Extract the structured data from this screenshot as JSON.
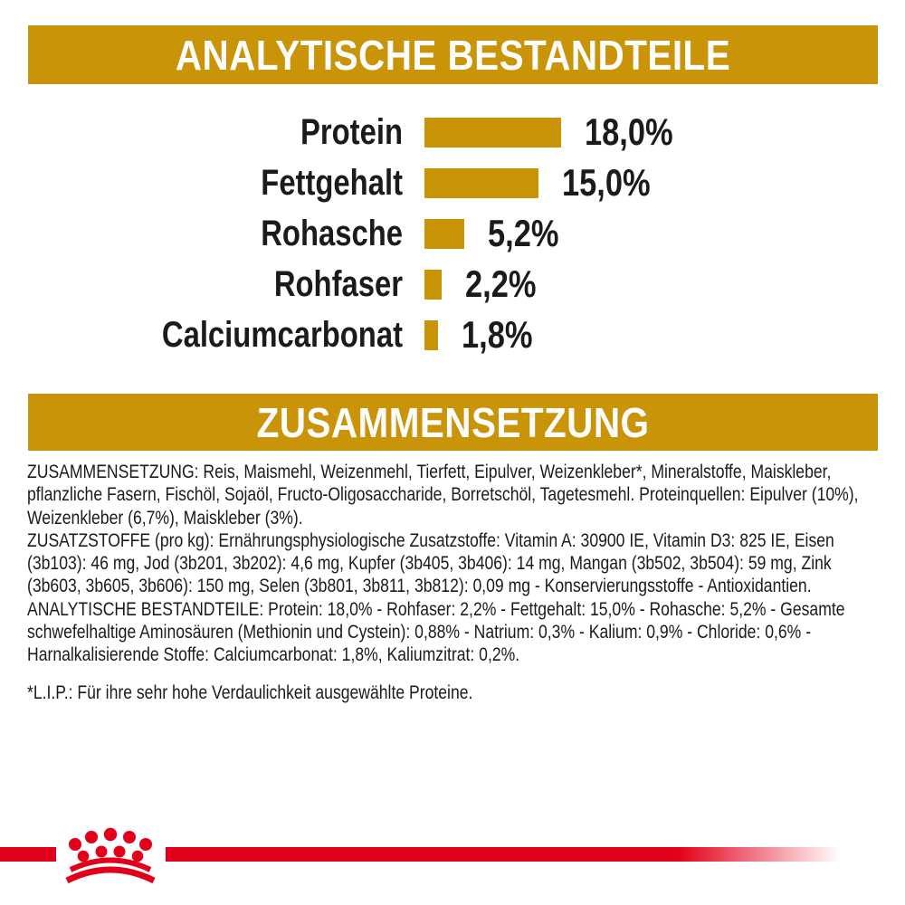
{
  "colors": {
    "gold": "#c99407",
    "red": "#e2001a",
    "text": "#1b1b1b"
  },
  "banners": {
    "analytical": "ANALYTISCHE BESTANDTEILE",
    "composition": "ZUSAMMENSETZUNG"
  },
  "chart_data": {
    "type": "bar",
    "orientation": "horizontal",
    "categories": [
      "Protein",
      "Fettgehalt",
      "Rohasche",
      "Rohfaser",
      "Calciumcarbonat"
    ],
    "values": [
      18.0,
      15.0,
      5.2,
      2.2,
      1.8
    ],
    "value_labels": [
      "18,0%",
      "15,0%",
      "5,2%",
      "2,2%",
      "1,8%"
    ],
    "unit": "%",
    "xlim": [
      0,
      18
    ],
    "bar_color": "#c99407",
    "grid": false,
    "legend": false
  },
  "composition": {
    "paragraphs": [
      "ZUSAMMENSETZUNG: Reis, Maismehl, Weizenmehl, Tierfett, Eipulver, Weizenkleber*, Mineralstoffe, Maiskleber, pflanzliche Fasern, Fischöl, Sojaöl, Fructo-Oligosaccharide, Borretschöl, Tagetesmehl. Proteinquellen: Eipulver (10%), Weizenkleber (6,7%), Maiskleber (3%).",
      "ZUSATZSTOFFE (pro kg): Ernährungsphysiologische Zusatzstoffe: Vitamin A: 30900 IE, Vitamin D3: 825 IE, Eisen (3b103): 46 mg, Jod (3b201, 3b202): 4,6 mg, Kupfer (3b405, 3b406): 14 mg, Mangan (3b502, 3b504): 59 mg, Zink (3b603, 3b605, 3b606): 150 mg, Selen (3b801, 3b811, 3b812): 0,09 mg - Konservierungsstoffe - Antioxidantien.",
      "ANALYTISCHE BESTANDTEILE: Protein: 18,0% - Rohfaser: 2,2% - Fettgehalt: 15,0% - Rohasche: 5,2% - Gesamte schwefelhaltige Aminosäuren (Methionin und Cystein): 0,88% - Natrium: 0,3% - Kalium: 0,9% - Chloride: 0,6% - Harnalkalisierende Stoffe: Calciumcarbonat: 1,8%, Kaliumzitrat: 0,2%."
    ],
    "footnote": "*L.I.P.: Für ihre sehr hohe Verdaulichkeit ausgewählte Proteine."
  },
  "footer": {
    "logo": "royal-canin-crown"
  }
}
